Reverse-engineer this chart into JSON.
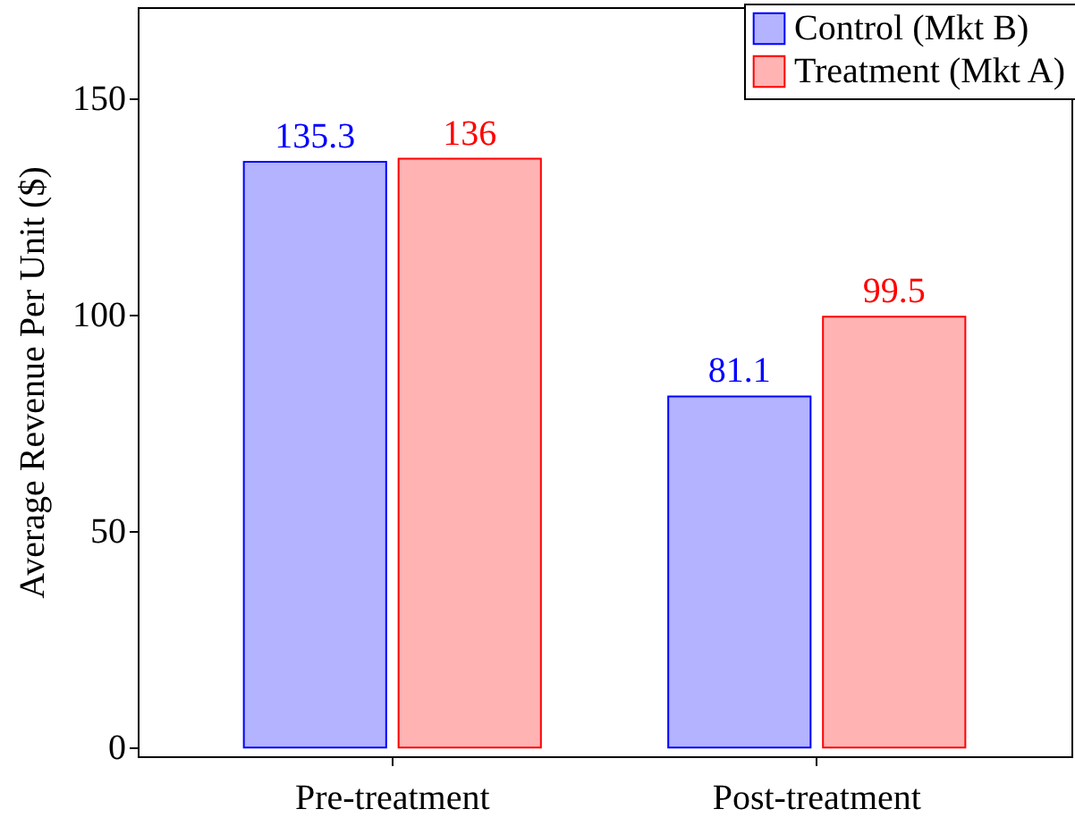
{
  "chart_data": {
    "type": "bar",
    "ylabel": "Average Revenue Per Unit ($)",
    "categories": [
      "Pre-treatment",
      "Post-treatment"
    ],
    "series": [
      {
        "name": "Control (Mkt B)",
        "color": "#b3b3ff",
        "values": [
          135.3,
          81.1
        ]
      },
      {
        "name": "Treatment (Mkt A)",
        "color": "#ffb3b3",
        "values": [
          136,
          99.5
        ]
      }
    ],
    "ylim": [
      -2,
      171
    ],
    "yticks": [
      0,
      50,
      100,
      150
    ],
    "data_labels": true,
    "legend": "top right",
    "grid": false
  }
}
